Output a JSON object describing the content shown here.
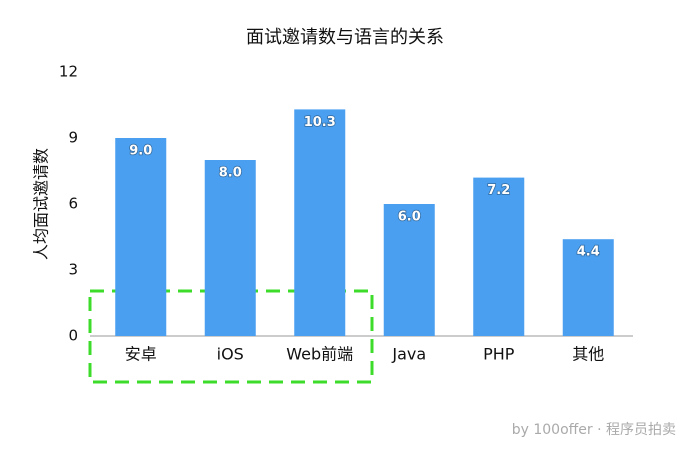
{
  "chart_data": {
    "type": "bar",
    "title": "面试邀请数与语言的关系",
    "y_label": "人均面试邀请数",
    "categories": [
      "安卓",
      "iOS",
      "Web前端",
      "Java",
      "PHP",
      "其他"
    ],
    "values": [
      9.0,
      8.0,
      10.3,
      6.0,
      7.2,
      4.4
    ],
    "value_labels": [
      "9.0",
      "8.0",
      "10.3",
      "6.0",
      "7.2",
      "4.4"
    ],
    "color": "#4a9ff0",
    "ylim": [
      0,
      12
    ],
    "yticks": [
      0,
      3,
      6,
      9,
      12
    ],
    "grid": false,
    "watermark": "by 100offer · 程序员拍卖"
  }
}
